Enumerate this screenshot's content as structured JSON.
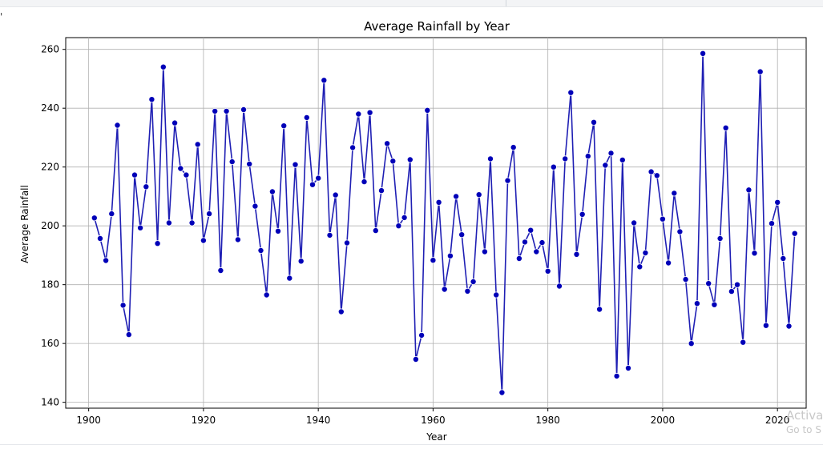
{
  "chart_data": {
    "type": "line",
    "title": "Average Rainfall by Year",
    "xlabel": "Year",
    "ylabel": "Average Rainfall",
    "xlim": [
      1896,
      2025
    ],
    "ylim": [
      138,
      264
    ],
    "xticks": [
      1900,
      1920,
      1940,
      1960,
      1980,
      2000,
      2020
    ],
    "yticks": [
      140,
      160,
      180,
      200,
      220,
      240,
      260
    ],
    "grid": true,
    "marker": "circle",
    "color": "#1f1fb4",
    "x": [
      1901,
      1902,
      1903,
      1904,
      1905,
      1906,
      1907,
      1908,
      1909,
      1910,
      1911,
      1912,
      1913,
      1914,
      1915,
      1916,
      1917,
      1918,
      1919,
      1920,
      1921,
      1922,
      1923,
      1924,
      1925,
      1926,
      1927,
      1928,
      1929,
      1930,
      1931,
      1932,
      1933,
      1934,
      1935,
      1936,
      1937,
      1938,
      1939,
      1940,
      1941,
      1942,
      1943,
      1944,
      1945,
      1946,
      1947,
      1948,
      1949,
      1950,
      1951,
      1952,
      1953,
      1954,
      1955,
      1956,
      1957,
      1958,
      1959,
      1960,
      1961,
      1962,
      1963,
      1964,
      1965,
      1966,
      1967,
      1968,
      1969,
      1970,
      1971,
      1972,
      1973,
      1974,
      1975,
      1976,
      1977,
      1978,
      1979,
      1980,
      1981,
      1982,
      1983,
      1984,
      1985,
      1986,
      1987,
      1988,
      1989,
      1990,
      1991,
      1992,
      1993,
      1994,
      1995,
      1996,
      1997,
      1998,
      1999,
      2000,
      2001,
      2002,
      2003,
      2004,
      2005,
      2006,
      2007,
      2008,
      2009,
      2010,
      2011,
      2012,
      2013,
      2014,
      2015,
      2016,
      2017,
      2018,
      2019,
      2020,
      2021,
      2022,
      2023
    ],
    "y": [
      202.7,
      195.7,
      188.2,
      204.1,
      234.2,
      173.0,
      163.0,
      217.3,
      199.3,
      213.3,
      243.0,
      194.0,
      254.0,
      201.0,
      235.0,
      219.5,
      217.3,
      201.0,
      227.7,
      195.0,
      204.1,
      239.0,
      184.8,
      239.0,
      221.8,
      195.3,
      239.5,
      221.0,
      206.7,
      191.6,
      176.5,
      211.6,
      198.2,
      234.0,
      182.2,
      220.8,
      188.0,
      236.8,
      214.0,
      216.2,
      249.5,
      196.8,
      210.5,
      170.8,
      194.2,
      226.6,
      238.0,
      215.0,
      238.5,
      198.4,
      212.0,
      228.0,
      222.0,
      200.0,
      202.8,
      222.5,
      154.6,
      162.8,
      239.3,
      188.3,
      208.0,
      178.4,
      189.8,
      210.0,
      197.0,
      177.8,
      181.0,
      210.6,
      191.2,
      222.8,
      176.5,
      143.3,
      215.4,
      226.7,
      188.9,
      194.5,
      198.5,
      191.2,
      194.3,
      184.6,
      220.0,
      179.5,
      222.8,
      245.3,
      190.3,
      203.9,
      223.7,
      235.2,
      171.6,
      220.6,
      224.7,
      148.9,
      222.4,
      151.6,
      201.0,
      186.1,
      190.8,
      218.4,
      217.1,
      202.3,
      187.4,
      211.1,
      198.0,
      181.8,
      160.0,
      173.6,
      258.6,
      180.4,
      173.2,
      195.7,
      233.3,
      177.7,
      180.0,
      160.4,
      212.2,
      190.7,
      252.4,
      166.1,
      200.8,
      208.0,
      188.9,
      165.9,
      197.4
    ]
  },
  "watermark": {
    "title": "Activa",
    "subtitle": "Go to S"
  },
  "corner_mark": "'"
}
